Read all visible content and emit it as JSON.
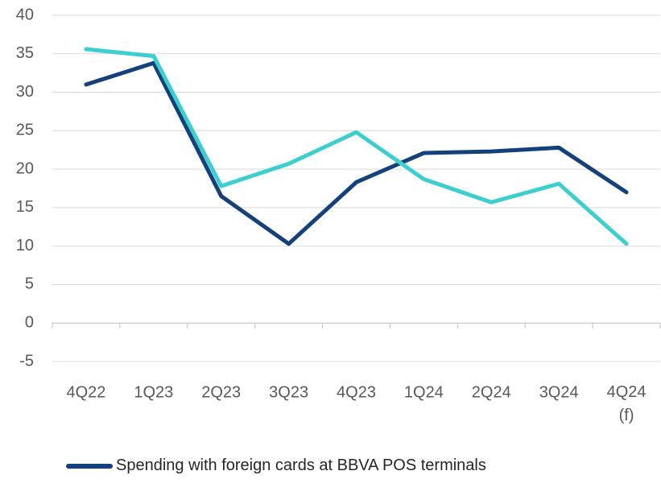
{
  "chart_data": {
    "type": "line",
    "categories": [
      "4Q22",
      "1Q23",
      "2Q23",
      "3Q23",
      "4Q23",
      "1Q24",
      "2Q24",
      "3Q24",
      "4Q24 (f)"
    ],
    "series": [
      {
        "name": "Spending with foreign cards at BBVA POS terminals",
        "color": "#14407c",
        "values": [
          31,
          33.8,
          16.5,
          10.3,
          18.3,
          22.1,
          22.3,
          22.8,
          17
        ]
      },
      {
        "color": "#3dcfcf",
        "values": [
          35.6,
          34.7,
          17.8,
          20.7,
          24.8,
          18.7,
          15.7,
          18.1,
          10.3
        ]
      }
    ],
    "ylim": [
      -5,
      40
    ],
    "yticks": [
      -5,
      0,
      5,
      10,
      15,
      20,
      25,
      30,
      35,
      40
    ],
    "grid": true
  }
}
